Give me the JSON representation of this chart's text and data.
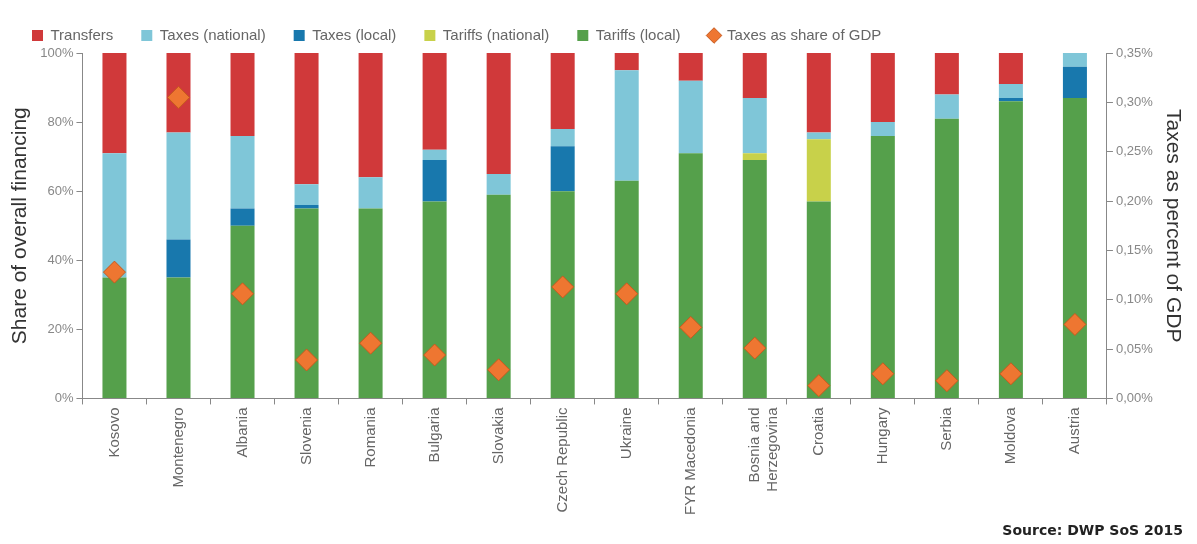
{
  "chart_data": {
    "type": "bar",
    "stacked": true,
    "categories": [
      "Kosovo",
      "Montenegro",
      "Albania",
      "Slovenia",
      "Romania",
      "Bulgaria",
      "Slovakia",
      "Czech Republic",
      "Ukraine",
      "FYR Macedonia",
      "Bosnia and Herzegovina",
      "Croatia",
      "Hungary",
      "Serbia",
      "Moldova",
      "Austria"
    ],
    "series": [
      {
        "name": "Tariffs (local)",
        "color": "#55a04b",
        "values": [
          35,
          35,
          50,
          55,
          55,
          57,
          59,
          60,
          63,
          71,
          69,
          57,
          76,
          81,
          86,
          87
        ]
      },
      {
        "name": "Tariffs (national)",
        "color": "#c8d14a",
        "values": [
          0,
          0,
          0,
          0,
          0,
          0,
          0,
          0,
          0,
          0,
          2,
          18,
          0,
          0,
          0,
          0
        ]
      },
      {
        "name": "Taxes (local)",
        "color": "#1878ad",
        "values": [
          0,
          11,
          5,
          1,
          0,
          12,
          0,
          13,
          0,
          0,
          0,
          0,
          0,
          0,
          1,
          9
        ]
      },
      {
        "name": "Taxes (national)",
        "color": "#7fc6d8",
        "values": [
          36,
          31,
          21,
          6,
          9,
          3,
          6,
          5,
          32,
          21,
          16,
          2,
          4,
          7,
          4,
          4
        ]
      },
      {
        "name": "Transfers",
        "color": "#d0393a",
        "values": [
          29,
          23,
          24,
          38,
          36,
          28,
          35,
          22,
          5,
          8,
          13,
          23,
          20,
          12,
          9,
          0
        ]
      },
      {
        "name": "Taxes as share of GDP",
        "type": "scatter",
        "axis": "y2",
        "marker": "diamond",
        "color": "#ee7631",
        "x": [
          "Kosovo",
          "Montenegro",
          "Albania",
          "Slovenia",
          "Romania",
          "Bulgaria",
          "Slovakia",
          "Czech Republic",
          "Ukraine",
          "FYR Macedonia",
          "Bosnia and Herzegovina",
          "Croatia",
          "Hungary",
          "Serbia",
          "Moldova",
          "Austria"
        ],
        "values": [
          0.128,
          0.305,
          0.106,
          0.039,
          0.056,
          0.044,
          0.029,
          0.113,
          0.106,
          0.072,
          0.051,
          0.013,
          0.025,
          0.018,
          0.025,
          0.075
        ]
      }
    ],
    "ylabel": "Share of overall financing",
    "y2label": "Taxes as percent of GDP",
    "ylim": [
      0,
      100
    ],
    "yticks": [
      {
        "value": 0,
        "label": "0%"
      },
      {
        "value": 20,
        "label": "20%"
      },
      {
        "value": 40,
        "label": "40%"
      },
      {
        "value": 60,
        "label": "60%"
      },
      {
        "value": 80,
        "label": "80%"
      },
      {
        "value": 100,
        "label": "100%"
      }
    ],
    "y2lim": [
      0,
      0.35
    ],
    "y2ticks": [
      {
        "value": 0,
        "label": "0,00%"
      },
      {
        "value": 0.05,
        "label": "0,05%"
      },
      {
        "value": 0.1,
        "label": "0,10%"
      },
      {
        "value": 0.15,
        "label": "0,15%"
      },
      {
        "value": 0.2,
        "label": "0,20%"
      },
      {
        "value": 0.25,
        "label": "0,25%"
      },
      {
        "value": 0.3,
        "label": "0,30%"
      },
      {
        "value": 0.35,
        "label": "0,35%"
      }
    ],
    "grid": false,
    "legend": "top",
    "annotations": [
      "Source: DWP SoS 2015"
    ]
  }
}
